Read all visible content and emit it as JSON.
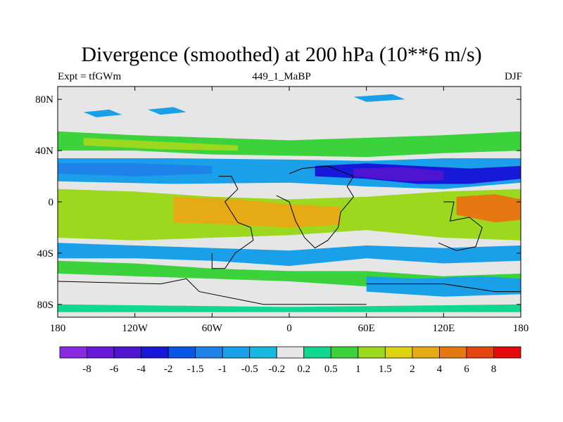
{
  "chart_data": {
    "type": "heatmap",
    "title": "Divergence (smoothed) at 200 hPa (10**6 m/s)",
    "left_label": "Expt = tfGWm",
    "center_label": "449_1_MaBP",
    "right_label": "DJF",
    "x_range": [
      -180,
      180
    ],
    "y_range": [
      -90,
      90
    ],
    "x_ticks": [
      {
        "value": -180,
        "label": "180"
      },
      {
        "value": -120,
        "label": "120W"
      },
      {
        "value": -60,
        "label": "60W"
      },
      {
        "value": 0,
        "label": "0"
      },
      {
        "value": 60,
        "label": "60E"
      },
      {
        "value": 120,
        "label": "120E"
      },
      {
        "value": 180,
        "label": "180"
      }
    ],
    "y_ticks": [
      {
        "value": 80,
        "label": "80N"
      },
      {
        "value": 40,
        "label": "40N"
      },
      {
        "value": 0,
        "label": "0"
      },
      {
        "value": -40,
        "label": "40S"
      },
      {
        "value": -80,
        "label": "80S"
      }
    ],
    "colorbar": {
      "colors": [
        "#8a2be2",
        "#6a18d8",
        "#4f14cf",
        "#1818d8",
        "#0a55e6",
        "#1f82e8",
        "#1aa0e8",
        "#18b9e0",
        "#e6e6e6",
        "#10d890",
        "#3cd23c",
        "#9bd81e",
        "#dcd410",
        "#e6aa14",
        "#e67812",
        "#e6440e",
        "#e60a0a"
      ],
      "labels": [
        "-8",
        "-6",
        "-4",
        "-2",
        "-1.5",
        "-1",
        "-0.5",
        "-0.2",
        "0.2",
        "0.5",
        "1",
        "1.5",
        "2",
        "4",
        "6",
        "8"
      ]
    },
    "features": [
      {
        "name": "nh-midlat-positive-band",
        "category": 10,
        "points": [
          [
            -180,
            55
          ],
          [
            -120,
            52
          ],
          [
            -60,
            50
          ],
          [
            0,
            48
          ],
          [
            60,
            50
          ],
          [
            120,
            52
          ],
          [
            180,
            55
          ],
          [
            180,
            40
          ],
          [
            120,
            38
          ],
          [
            60,
            35
          ],
          [
            0,
            36
          ],
          [
            -60,
            37
          ],
          [
            -120,
            40
          ],
          [
            -180,
            40
          ]
        ]
      },
      {
        "name": "nh-midlat-core",
        "category": 11,
        "points": [
          [
            -160,
            50
          ],
          [
            -100,
            47
          ],
          [
            -40,
            44
          ],
          [
            -40,
            40
          ],
          [
            -100,
            41
          ],
          [
            -160,
            44
          ]
        ]
      },
      {
        "name": "nh-jet-negative-band",
        "category": 6,
        "points": [
          [
            -180,
            34
          ],
          [
            -90,
            34
          ],
          [
            0,
            33
          ],
          [
            60,
            32
          ],
          [
            120,
            34
          ],
          [
            180,
            34
          ],
          [
            180,
            15
          ],
          [
            120,
            10
          ],
          [
            60,
            12
          ],
          [
            0,
            15
          ],
          [
            -90,
            14
          ],
          [
            -180,
            16
          ]
        ]
      },
      {
        "name": "nh-jet-negative-core",
        "category": 5,
        "points": [
          [
            -180,
            30
          ],
          [
            -120,
            30
          ],
          [
            -60,
            28
          ],
          [
            -60,
            22
          ],
          [
            -120,
            20
          ],
          [
            -180,
            22
          ]
        ]
      },
      {
        "name": "asia-pacific-strong-convergence",
        "category": 3,
        "points": [
          [
            20,
            28
          ],
          [
            60,
            30
          ],
          [
            100,
            28
          ],
          [
            140,
            26
          ],
          [
            180,
            28
          ],
          [
            180,
            18
          ],
          [
            140,
            14
          ],
          [
            100,
            14
          ],
          [
            60,
            18
          ],
          [
            20,
            20
          ]
        ]
      },
      {
        "name": "asia-pacific-core",
        "category": 2,
        "points": [
          [
            50,
            26
          ],
          [
            90,
            27
          ],
          [
            120,
            24
          ],
          [
            120,
            17
          ],
          [
            90,
            16
          ],
          [
            50,
            20
          ]
        ]
      },
      {
        "name": "tropical-positive-band",
        "category": 11,
        "points": [
          [
            -180,
            10
          ],
          [
            -120,
            8
          ],
          [
            -60,
            4
          ],
          [
            0,
            2
          ],
          [
            60,
            4
          ],
          [
            120,
            8
          ],
          [
            180,
            10
          ],
          [
            180,
            -30
          ],
          [
            120,
            -28
          ],
          [
            60,
            -22
          ],
          [
            0,
            -26
          ],
          [
            -60,
            -28
          ],
          [
            -120,
            -30
          ],
          [
            -180,
            -28
          ]
        ]
      },
      {
        "name": "tropical-positive-core",
        "category": 13,
        "points": [
          [
            -90,
            4
          ],
          [
            -40,
            2
          ],
          [
            0,
            -2
          ],
          [
            40,
            -4
          ],
          [
            40,
            -18
          ],
          [
            0,
            -20
          ],
          [
            -40,
            -18
          ],
          [
            -90,
            -16
          ]
        ]
      },
      {
        "name": "west-pacific-maximum",
        "category": 14,
        "points": [
          [
            130,
            4
          ],
          [
            160,
            6
          ],
          [
            180,
            2
          ],
          [
            180,
            -14
          ],
          [
            160,
            -16
          ],
          [
            130,
            -10
          ]
        ]
      },
      {
        "name": "sh-negative-band",
        "category": 6,
        "points": [
          [
            -180,
            -32
          ],
          [
            -120,
            -34
          ],
          [
            -60,
            -36
          ],
          [
            0,
            -38
          ],
          [
            60,
            -34
          ],
          [
            120,
            -36
          ],
          [
            180,
            -34
          ],
          [
            180,
            -46
          ],
          [
            120,
            -48
          ],
          [
            60,
            -44
          ],
          [
            0,
            -50
          ],
          [
            -60,
            -46
          ],
          [
            -120,
            -44
          ],
          [
            -180,
            -44
          ]
        ]
      },
      {
        "name": "sh-positive-band",
        "category": 10,
        "points": [
          [
            -180,
            -46
          ],
          [
            -120,
            -48
          ],
          [
            -60,
            -52
          ],
          [
            0,
            -54
          ],
          [
            60,
            -54
          ],
          [
            120,
            -58
          ],
          [
            180,
            -56
          ],
          [
            180,
            -64
          ],
          [
            120,
            -68
          ],
          [
            60,
            -66
          ],
          [
            0,
            -62
          ],
          [
            -60,
            -60
          ],
          [
            -120,
            -58
          ],
          [
            -180,
            -56
          ]
        ]
      },
      {
        "name": "sh-high-latitude-negative",
        "category": 6,
        "points": [
          [
            60,
            -58
          ],
          [
            100,
            -60
          ],
          [
            150,
            -58
          ],
          [
            180,
            -60
          ],
          [
            180,
            -72
          ],
          [
            120,
            -74
          ],
          [
            60,
            -70
          ]
        ]
      },
      {
        "name": "antarctic-positive-strip",
        "category": 9,
        "points": [
          [
            -180,
            -80
          ],
          [
            0,
            -82
          ],
          [
            180,
            -80
          ],
          [
            180,
            -86
          ],
          [
            0,
            -86
          ],
          [
            -180,
            -86
          ]
        ]
      },
      {
        "name": "arctic-negative-patch",
        "category": 6,
        "points": [
          [
            -110,
            72
          ],
          [
            -90,
            74
          ],
          [
            -80,
            70
          ],
          [
            -100,
            68
          ]
        ]
      },
      {
        "name": "arctic-negative-patch",
        "category": 6,
        "points": [
          [
            50,
            82
          ],
          [
            80,
            84
          ],
          [
            90,
            80
          ],
          [
            60,
            78
          ]
        ]
      },
      {
        "name": "arctic-negative-patch",
        "category": 6,
        "points": [
          [
            -160,
            70
          ],
          [
            -140,
            72
          ],
          [
            -130,
            68
          ],
          [
            -150,
            66
          ]
        ]
      }
    ],
    "coastlines": [
      [
        [
          -55,
          20
        ],
        [
          -45,
          20
        ],
        [
          -40,
          10
        ],
        [
          -50,
          0
        ],
        [
          -45,
          -8
        ],
        [
          -40,
          -16
        ],
        [
          -30,
          -20
        ],
        [
          -28,
          -30
        ],
        [
          -42,
          -40
        ],
        [
          -50,
          -52
        ],
        [
          -60,
          -52
        ],
        [
          -60,
          -40
        ]
      ],
      [
        [
          0,
          22
        ],
        [
          10,
          26
        ],
        [
          30,
          28
        ],
        [
          40,
          24
        ],
        [
          50,
          20
        ],
        [
          45,
          12
        ],
        [
          50,
          4
        ],
        [
          40,
          -8
        ],
        [
          38,
          -20
        ],
        [
          30,
          -30
        ],
        [
          20,
          -36
        ],
        [
          12,
          -28
        ],
        [
          5,
          -15
        ],
        [
          0,
          0
        ],
        [
          -10,
          5
        ]
      ],
      [
        [
          120,
          0
        ],
        [
          128,
          0
        ],
        [
          125,
          -15
        ],
        [
          140,
          -12
        ],
        [
          150,
          -20
        ],
        [
          145,
          -35
        ],
        [
          130,
          -38
        ],
        [
          116,
          -32
        ]
      ],
      [
        [
          60,
          -64
        ],
        [
          120,
          -64
        ],
        [
          160,
          -70
        ],
        [
          180,
          -70
        ]
      ],
      [
        [
          -180,
          -62
        ],
        [
          -100,
          -64
        ],
        [
          -80,
          -60
        ],
        [
          -70,
          -70
        ],
        [
          -20,
          -80
        ],
        [
          60,
          -80
        ]
      ]
    ]
  }
}
